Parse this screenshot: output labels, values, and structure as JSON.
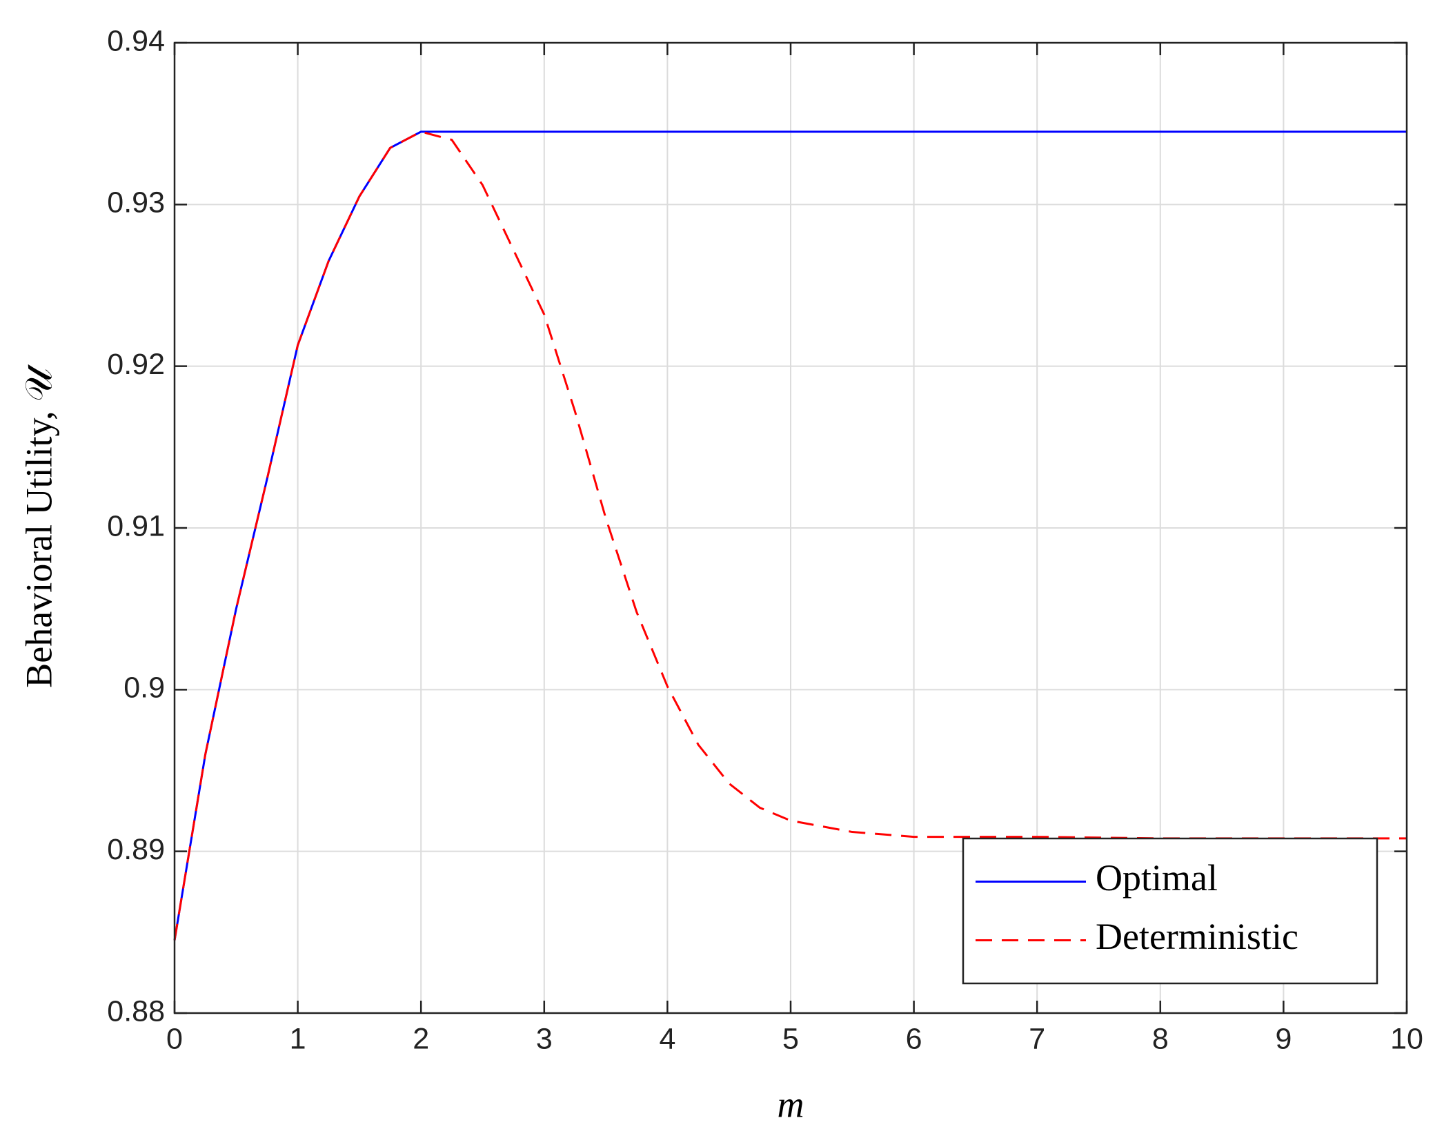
{
  "chart_data": {
    "type": "line",
    "xlabel": "m",
    "ylabel": "Behavioral Utility, 𝒰",
    "x": [
      0,
      0.25,
      0.5,
      0.75,
      1,
      1.25,
      1.5,
      1.75,
      2,
      2.25,
      2.5,
      2.75,
      3,
      3.25,
      3.5,
      3.75,
      4,
      4.25,
      4.5,
      4.75,
      5,
      5.5,
      6,
      7,
      8,
      9,
      10
    ],
    "series": [
      {
        "name": "Optimal",
        "color": "#0000ff",
        "linestyle": "solid",
        "values": [
          0.8845,
          0.896,
          0.905,
          0.913,
          0.9213,
          0.9265,
          0.9305,
          0.9335,
          0.9345,
          0.9345,
          0.9345,
          0.9345,
          0.9345,
          0.9345,
          0.9345,
          0.9345,
          0.9345,
          0.9345,
          0.9345,
          0.9345,
          0.9345,
          0.9345,
          0.9345,
          0.9345,
          0.9345,
          0.9345,
          0.9345
        ]
      },
      {
        "name": "Deterministic",
        "color": "#ff0000",
        "linestyle": "dashed",
        "values": [
          0.8845,
          0.896,
          0.905,
          0.913,
          0.9213,
          0.9265,
          0.9305,
          0.9335,
          0.9345,
          0.934,
          0.9312,
          0.9272,
          0.9232,
          0.9172,
          0.9106,
          0.9048,
          0.9002,
          0.8966,
          0.8942,
          0.8927,
          0.8919,
          0.8912,
          0.8909,
          0.8909,
          0.8908,
          0.8908,
          0.8908
        ]
      }
    ],
    "xlim": [
      0,
      10
    ],
    "xticks": [
      0,
      1,
      2,
      3,
      4,
      5,
      6,
      7,
      8,
      9,
      10
    ],
    "ylim": [
      0.88,
      0.94
    ],
    "yticks": [
      0.88,
      0.89,
      0.9,
      0.91,
      0.92,
      0.93,
      0.94
    ],
    "grid": true,
    "legend": "lower right"
  }
}
